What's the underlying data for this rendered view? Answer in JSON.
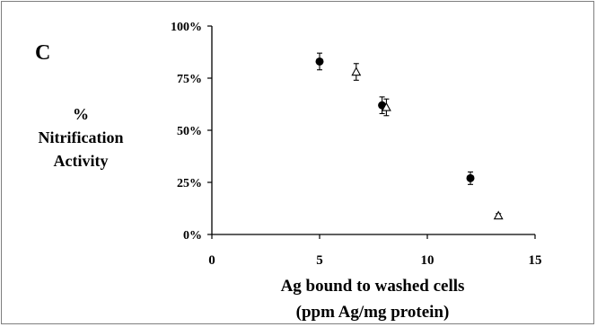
{
  "panel_label": "C",
  "chart_data": {
    "type": "scatter",
    "ylabel_lines": [
      "%",
      "Nitrification",
      "Activity"
    ],
    "xlabel_lines": [
      "Ag bound to washed cells",
      "(ppm Ag/mg protein)"
    ],
    "xlim": [
      0,
      15
    ],
    "ylim": [
      0,
      100
    ],
    "xticks": [
      0,
      5,
      10,
      15
    ],
    "xtick_labels": [
      "0",
      "5",
      "10",
      "15"
    ],
    "yticks": [
      0,
      25,
      50,
      75,
      100
    ],
    "ytick_labels": [
      "0%",
      "25%",
      "50%",
      "75%",
      "100%"
    ],
    "grid": false,
    "series": [
      {
        "marker": "filled-circle",
        "color": "#000000",
        "points": [
          {
            "x": 5.0,
            "y": 83,
            "err": 4
          },
          {
            "x": 7.9,
            "y": 62,
            "err": 4
          },
          {
            "x": 12.0,
            "y": 27,
            "err": 3
          }
        ]
      },
      {
        "marker": "open-triangle",
        "color": "#000000",
        "points": [
          {
            "x": 6.7,
            "y": 78,
            "err": 4
          },
          {
            "x": 8.1,
            "y": 61,
            "err": 4
          },
          {
            "x": 13.3,
            "y": 9,
            "err": 1
          }
        ]
      }
    ]
  }
}
